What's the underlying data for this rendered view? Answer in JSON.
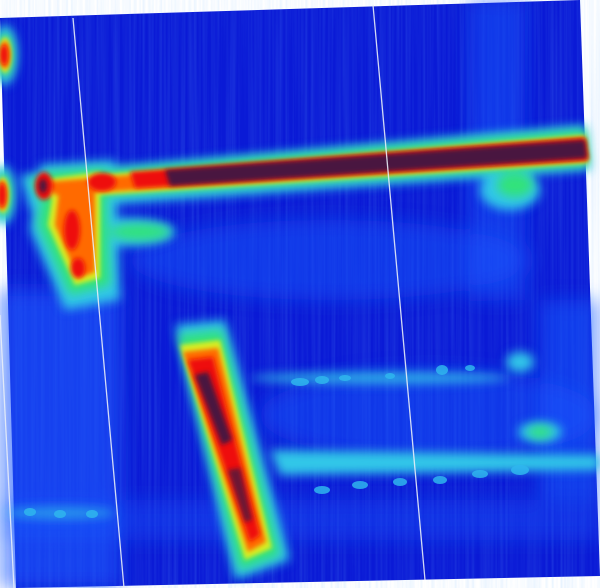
{
  "image": {
    "kind": "rotated false-color intensity heatmap (jet colormap) with no text",
    "background_color": "#0a1ad6",
    "colormap": [
      "#0a1ad6",
      "#1a5cff",
      "#33c8e8",
      "#33e27a",
      "#d8ee22",
      "#ff6a00",
      "#ee1010",
      "#4a1840"
    ]
  }
}
